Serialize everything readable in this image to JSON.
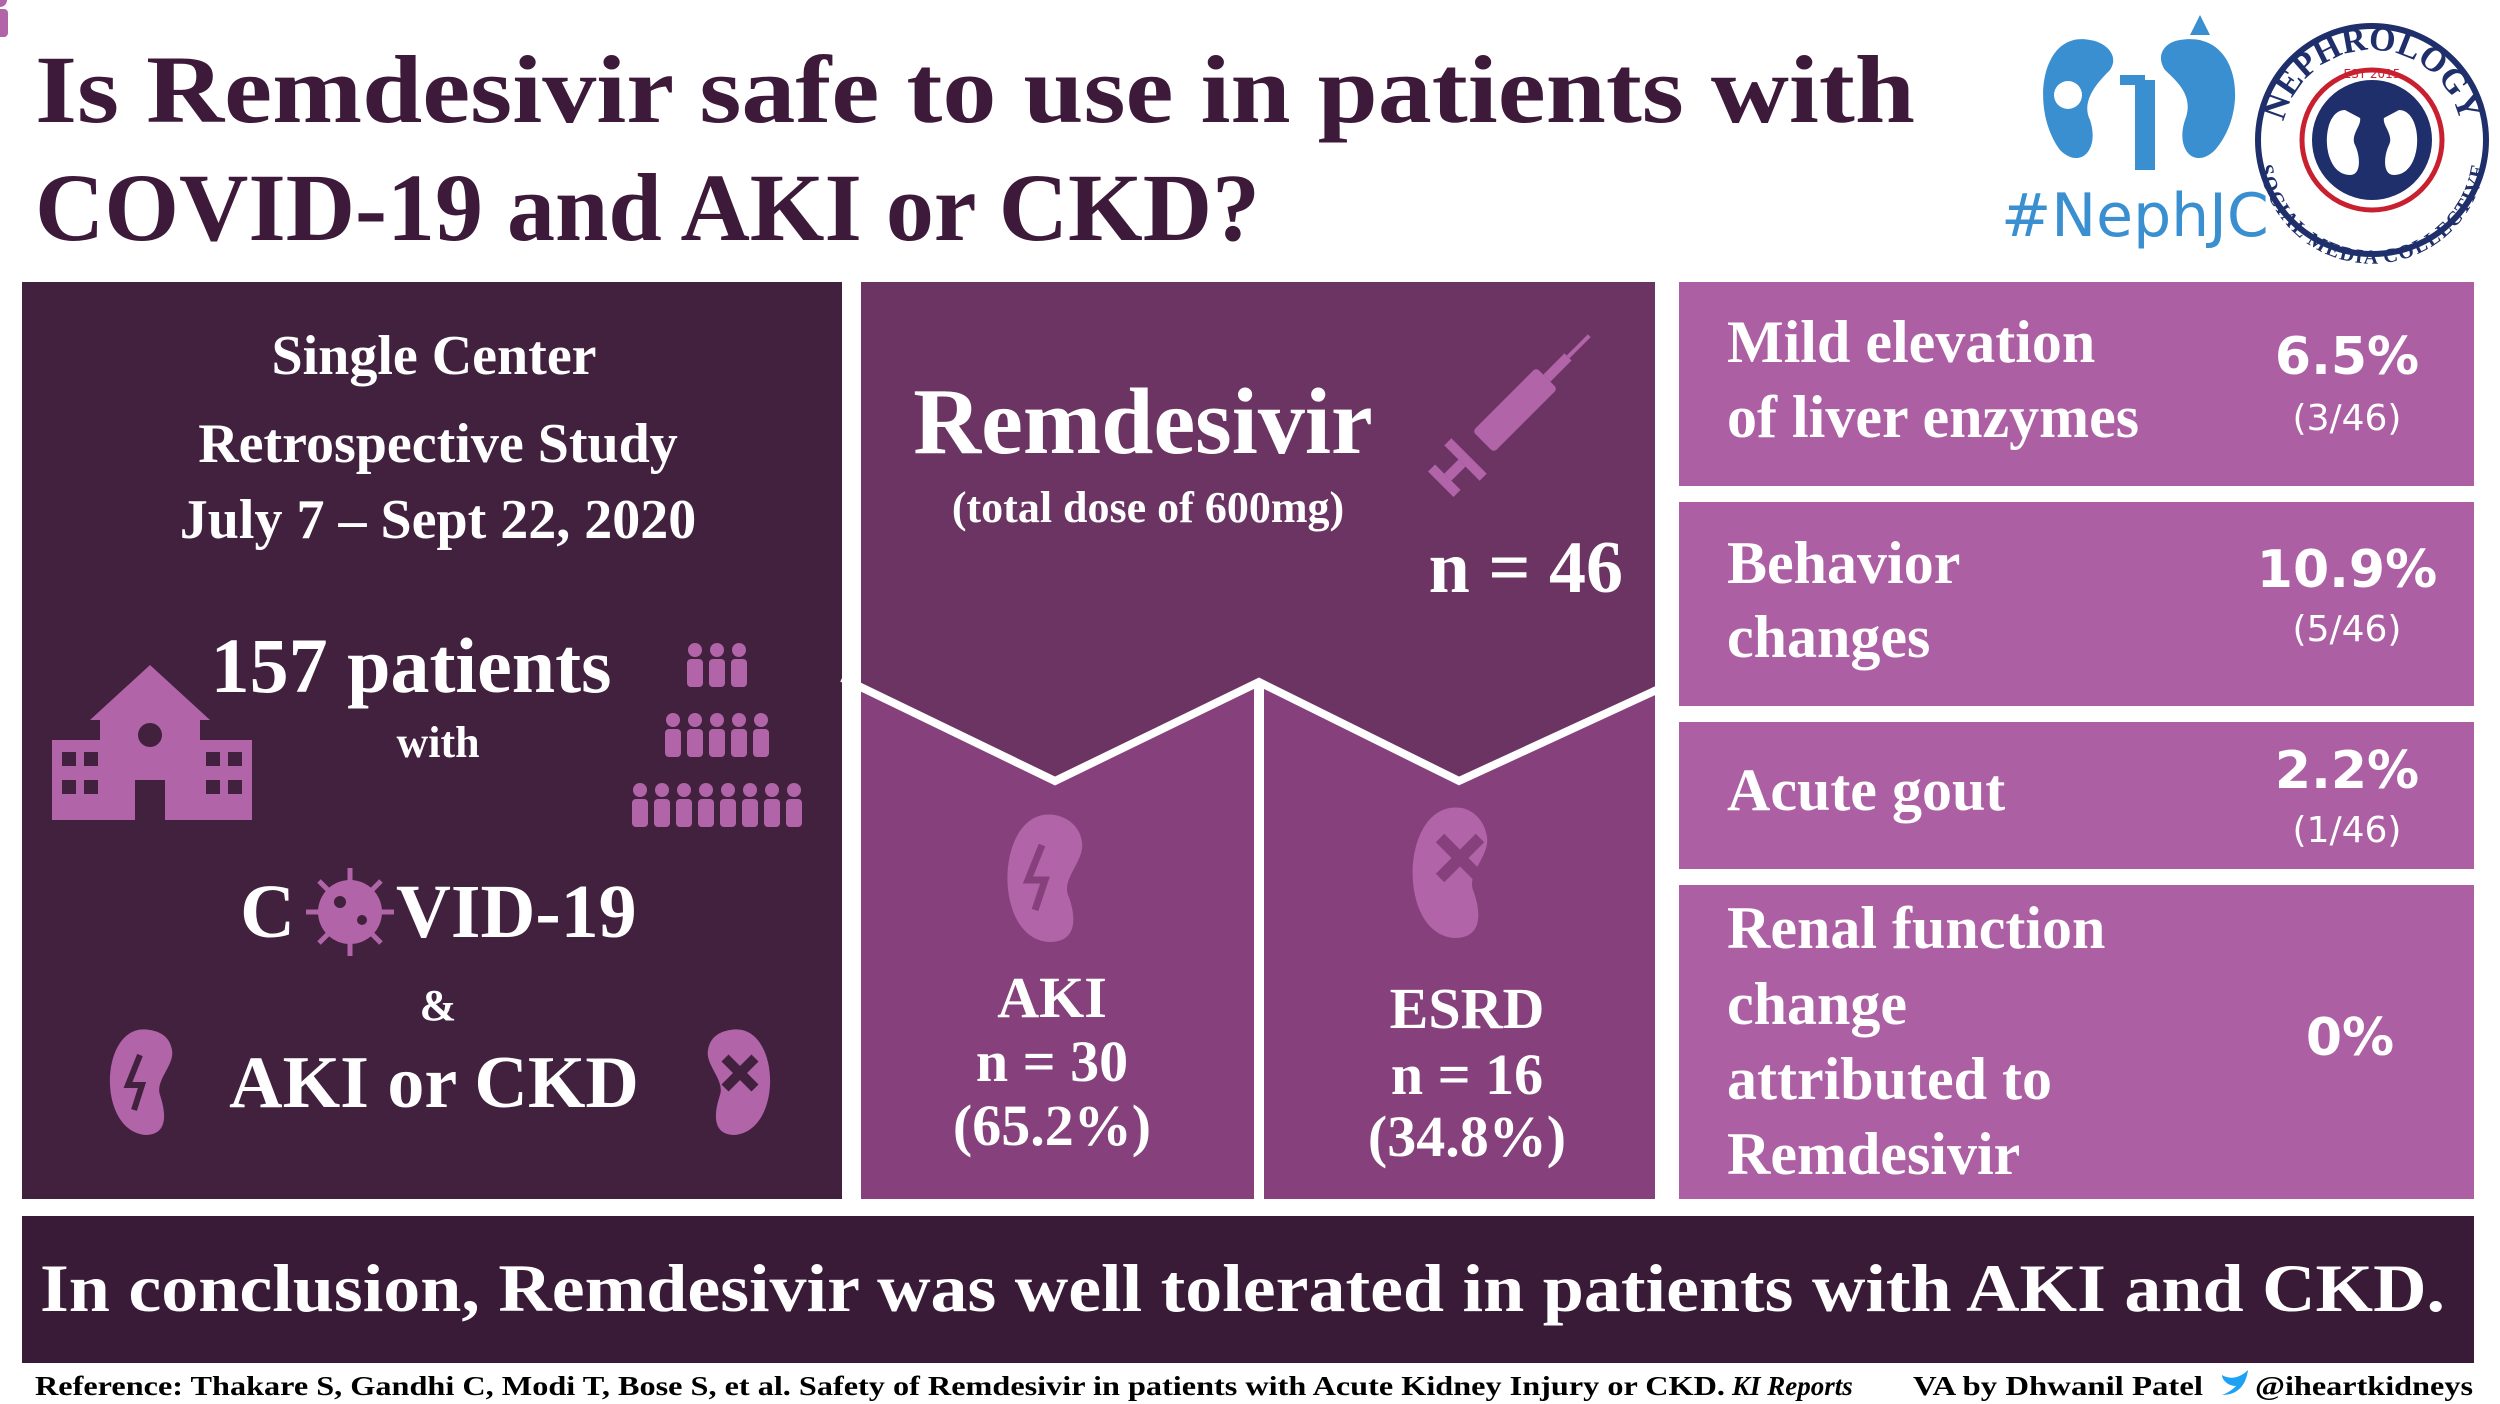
{
  "title": [
    "Is Remdesivir safe to use in patients with",
    "COVID-19 and AKI or CKD?"
  ],
  "logo": {
    "hashtag": "#NephJC",
    "ring_top": "NEPHROLOGY",
    "ring_bottom": "SOCIAL MEDIA COLLECTIVE",
    "est": "EST 2015"
  },
  "study": {
    "lines": [
      "Single Center",
      "Retrospective Study",
      "July 7 – Sept 22, 2020"
    ],
    "patients": "157 patients",
    "with": "with",
    "covid_start": "C",
    "covid_end": "VID-19",
    "and": "&",
    "conditions": "AKI or CKD"
  },
  "drug": {
    "name": "Remdesivir",
    "dose": "(total dose of 600mg)",
    "n": "n = 46",
    "groups": [
      {
        "label": "AKI",
        "n": "n = 30",
        "share": "(65.2%)"
      },
      {
        "label": "ESRD",
        "n": "n = 16",
        "share": "(34.8%)"
      }
    ]
  },
  "effects": [
    {
      "label": [
        "Mild elevation",
        "of liver enzymes"
      ],
      "percent": "6.5%",
      "fraction": "(3/46)"
    },
    {
      "label": [
        "Behavior",
        "changes"
      ],
      "percent": "10.9%",
      "fraction": "(5/46)"
    },
    {
      "label": [
        "Acute gout"
      ],
      "percent": "2.2%",
      "fraction": "(1/46)"
    },
    {
      "label": [
        "Renal function",
        "change",
        "attributed to",
        "Remdesivir"
      ],
      "percent": "0%"
    }
  ],
  "conclusion": "In conclusion, Remdesivir was well tolerated in patients with AKI and CKD.",
  "footer": {
    "reference": "Reference: Thakare S, Gandhi C, Modi T, Bose S, et al. Safety of Remdesivir in patients with Acute Kidney Injury or CKD.",
    "journal": "KI Reports",
    "credit": "VA by Dhwanil Patel",
    "handle": "@iheartkidneys"
  }
}
